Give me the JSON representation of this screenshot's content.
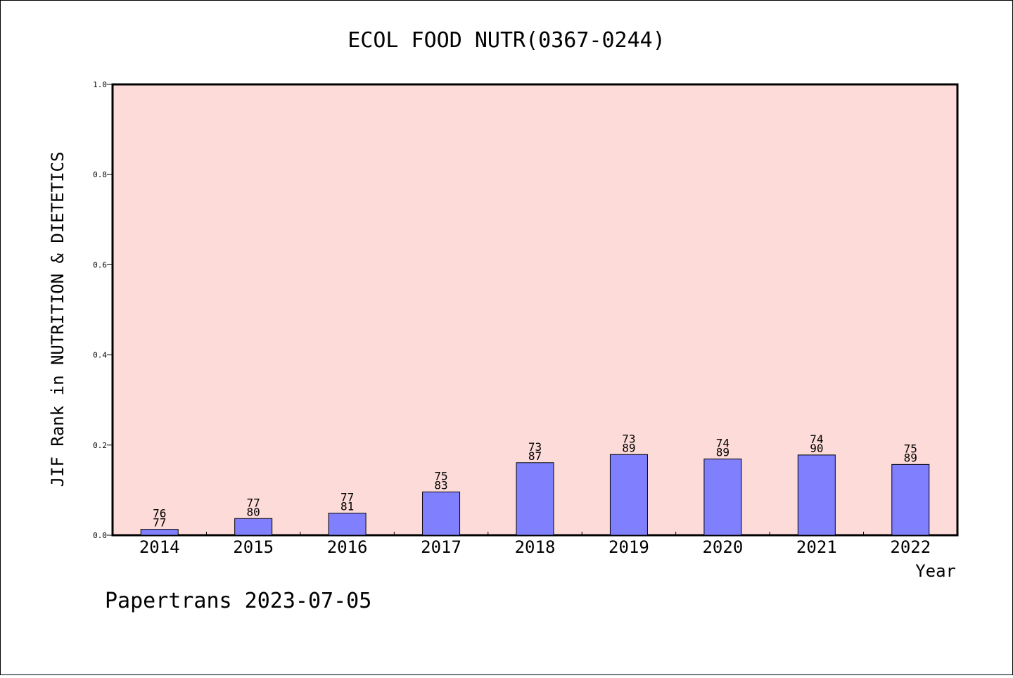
{
  "chart_data": {
    "type": "bar",
    "title": "ECOL FOOD NUTR(0367-0244)",
    "xlabel": "Year",
    "ylabel": "JIF Rank in NUTRITION & DIETETICS",
    "ylim": [
      0,
      1.0
    ],
    "yticks": [
      "0.0",
      "0.2",
      "0.4",
      "0.6",
      "0.8",
      "1.0"
    ],
    "categories": [
      "2014",
      "2015",
      "2016",
      "2017",
      "2018",
      "2019",
      "2020",
      "2021",
      "2022"
    ],
    "values": [
      0.013,
      0.037,
      0.049,
      0.096,
      0.161,
      0.179,
      0.169,
      0.178,
      0.157
    ],
    "rank_labels": [
      "76",
      "77",
      "77",
      "75",
      "73",
      "73",
      "74",
      "74",
      "75"
    ],
    "total_labels": [
      "77",
      "80",
      "81",
      "83",
      "87",
      "89",
      "89",
      "90",
      "89"
    ],
    "grid": false,
    "colors": {
      "plot_background": "#fddbd8",
      "bar": "#8080ff"
    }
  },
  "footer": "Papertrans 2023-07-05"
}
